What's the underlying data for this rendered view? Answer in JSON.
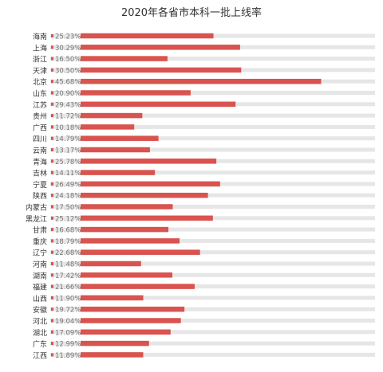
{
  "chart_data": {
    "type": "bar",
    "orientation": "horizontal",
    "title": "2020年各省市本科一批上线率",
    "categories": [
      "海南",
      "上海",
      "浙江",
      "天津",
      "北京",
      "山东",
      "江苏",
      "贵州",
      "广西",
      "四川",
      "云南",
      "青海",
      "吉林",
      "宁夏",
      "陕西",
      "内蒙古",
      "黑龙江",
      "甘肃",
      "重庆",
      "辽宁",
      "河南",
      "湖南",
      "福建",
      "山西",
      "安徽",
      "河北",
      "湖北",
      "广东",
      "江西"
    ],
    "values": [
      25.23,
      30.29,
      16.5,
      30.5,
      45.68,
      20.9,
      29.43,
      11.72,
      10.18,
      14.79,
      13.17,
      25.78,
      14.11,
      26.49,
      24.18,
      17.5,
      25.12,
      16.68,
      18.79,
      22.68,
      11.48,
      17.42,
      21.66,
      11.9,
      19.72,
      19.04,
      17.09,
      12.99,
      11.89
    ],
    "labels": [
      "25.23%",
      "30.29%",
      "16.50%",
      "30.50%",
      "45.68%",
      "20.90%",
      "29.43%",
      "11.72%",
      "10.18%",
      "14.79%",
      "13.17%",
      "25.78%",
      "14.11%",
      "26.49%",
      "24.18%",
      "17.50%",
      "25.12%",
      "16.68%",
      "18.79%",
      "22.68%",
      "11.48%",
      "17.42%",
      "21.66%",
      "11.90%",
      "19.72%",
      "19.04%",
      "17.09%",
      "12.99%",
      "11.89%"
    ],
    "value_unit": "%",
    "xlim": [
      0,
      50
    ],
    "grid": false,
    "legend": "none",
    "colors": {
      "bar": "#d9534f",
      "track": "#e6e6e6",
      "label": "#777777",
      "category": "#333333"
    }
  }
}
